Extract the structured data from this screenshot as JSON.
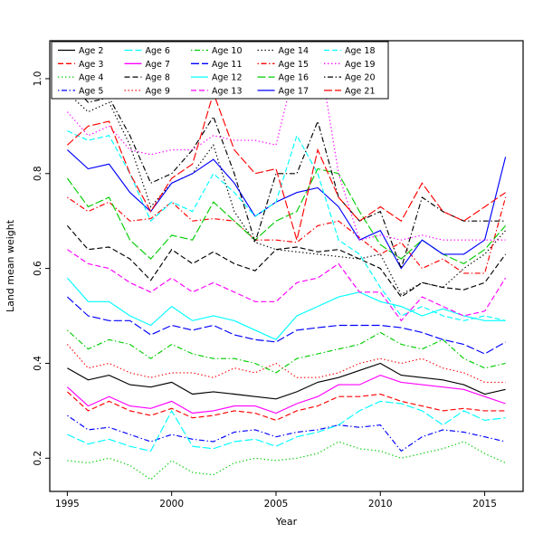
{
  "figure": {
    "background": "#ffffff",
    "axis_color": "#000000"
  },
  "chart_data": {
    "type": "line",
    "title": "",
    "xlabel": "Year",
    "ylabel": "Land mean weight",
    "xlim": [
      1994.16,
      2016.84
    ],
    "ylim": [
      0.13,
      1.08
    ],
    "xticks": [
      1995,
      2000,
      2005,
      2010,
      2015
    ],
    "yticks": [
      "0.2",
      "0.4",
      "0.6",
      "0.8",
      "1.0"
    ],
    "grid": false,
    "legend": {
      "position": "top-left",
      "ncol": 5,
      "rows": 4,
      "border": true
    },
    "x": [
      1995,
      1996,
      1997,
      1998,
      1999,
      2000,
      2001,
      2002,
      2003,
      2004,
      2005,
      2006,
      2007,
      2008,
      2009,
      2010,
      2011,
      2012,
      2013,
      2014,
      2015,
      2016
    ],
    "series": [
      {
        "name": "Age 2",
        "color": "#000000",
        "dash": "solid",
        "values": [
          0.39,
          0.365,
          0.375,
          0.355,
          0.35,
          0.36,
          0.335,
          0.34,
          0.335,
          0.33,
          0.325,
          0.34,
          0.36,
          0.37,
          0.385,
          0.4,
          0.375,
          0.37,
          0.365,
          0.355,
          0.335,
          0.345
        ]
      },
      {
        "name": "Age 3",
        "color": "#ff0000",
        "dash": "dashed",
        "values": [
          0.34,
          0.3,
          0.32,
          0.3,
          0.29,
          0.305,
          0.285,
          0.29,
          0.3,
          0.295,
          0.28,
          0.3,
          0.31,
          0.33,
          0.33,
          0.335,
          0.32,
          0.31,
          0.3,
          0.305,
          0.3,
          0.3
        ]
      },
      {
        "name": "Age 4",
        "color": "#00cd00",
        "dash": "dotted",
        "values": [
          0.195,
          0.19,
          0.2,
          0.185,
          0.155,
          0.195,
          0.17,
          0.165,
          0.19,
          0.2,
          0.195,
          0.2,
          0.21,
          0.235,
          0.22,
          0.215,
          0.2,
          0.21,
          0.22,
          0.235,
          0.21,
          0.19
        ]
      },
      {
        "name": "Age 5",
        "color": "#0000ff",
        "dash": "dotdash",
        "values": [
          0.29,
          0.26,
          0.265,
          0.25,
          0.235,
          0.25,
          0.24,
          0.235,
          0.255,
          0.26,
          0.245,
          0.255,
          0.26,
          0.27,
          0.265,
          0.27,
          0.215,
          0.245,
          0.26,
          0.255,
          0.245,
          0.235
        ]
      },
      {
        "name": "Age 6",
        "color": "#00ffff",
        "dash": "longdash",
        "values": [
          0.25,
          0.23,
          0.24,
          0.225,
          0.215,
          0.3,
          0.225,
          0.22,
          0.235,
          0.24,
          0.225,
          0.245,
          0.255,
          0.27,
          0.3,
          0.32,
          0.315,
          0.3,
          0.27,
          0.3,
          0.28,
          0.285
        ]
      },
      {
        "name": "Age 7",
        "color": "#ff00ff",
        "dash": "solid",
        "values": [
          0.35,
          0.31,
          0.33,
          0.31,
          0.305,
          0.32,
          0.295,
          0.3,
          0.31,
          0.31,
          0.295,
          0.315,
          0.33,
          0.355,
          0.355,
          0.375,
          0.36,
          0.355,
          0.35,
          0.345,
          0.33,
          0.315
        ]
      },
      {
        "name": "Age 8",
        "color": "#000000",
        "dash": "dashed",
        "values": [
          0.69,
          0.64,
          0.645,
          0.62,
          0.575,
          0.64,
          0.61,
          0.635,
          0.61,
          0.595,
          0.64,
          0.645,
          0.635,
          0.64,
          0.62,
          0.6,
          0.54,
          0.57,
          0.56,
          0.555,
          0.57,
          0.63
        ]
      },
      {
        "name": "Age 9",
        "color": "#ff0000",
        "dash": "dotted",
        "values": [
          0.44,
          0.39,
          0.4,
          0.38,
          0.37,
          0.38,
          0.38,
          0.37,
          0.39,
          0.38,
          0.4,
          0.37,
          0.37,
          0.38,
          0.4,
          0.41,
          0.4,
          0.41,
          0.39,
          0.38,
          0.36,
          0.36
        ]
      },
      {
        "name": "Age 10",
        "color": "#00cd00",
        "dash": "dotdash",
        "values": [
          0.47,
          0.43,
          0.45,
          0.44,
          0.41,
          0.44,
          0.42,
          0.41,
          0.41,
          0.4,
          0.38,
          0.41,
          0.42,
          0.43,
          0.44,
          0.465,
          0.44,
          0.43,
          0.45,
          0.41,
          0.39,
          0.4
        ]
      },
      {
        "name": "Age 11",
        "color": "#0000ff",
        "dash": "longdash",
        "values": [
          0.54,
          0.5,
          0.49,
          0.49,
          0.46,
          0.48,
          0.47,
          0.48,
          0.46,
          0.45,
          0.445,
          0.47,
          0.475,
          0.48,
          0.48,
          0.48,
          0.475,
          0.465,
          0.45,
          0.44,
          0.42,
          0.445
        ]
      },
      {
        "name": "Age 12",
        "color": "#00ffff",
        "dash": "solid",
        "values": [
          0.58,
          0.53,
          0.53,
          0.5,
          0.48,
          0.52,
          0.49,
          0.5,
          0.49,
          0.47,
          0.45,
          0.5,
          0.52,
          0.54,
          0.55,
          0.53,
          0.52,
          0.5,
          0.515,
          0.5,
          0.49,
          0.49
        ]
      },
      {
        "name": "Age 13",
        "color": "#ff00ff",
        "dash": "dashed",
        "values": [
          0.64,
          0.61,
          0.6,
          0.57,
          0.55,
          0.58,
          0.55,
          0.57,
          0.55,
          0.53,
          0.53,
          0.57,
          0.58,
          0.61,
          0.55,
          0.55,
          0.49,
          0.54,
          0.52,
          0.5,
          0.51,
          0.58
        ]
      },
      {
        "name": "Age 14",
        "color": "#000000",
        "dash": "dotted",
        "values": [
          0.97,
          0.93,
          0.95,
          0.86,
          0.73,
          0.78,
          0.8,
          0.86,
          0.72,
          0.655,
          0.64,
          0.635,
          0.63,
          0.625,
          0.62,
          0.63,
          0.545,
          0.57,
          0.56,
          0.6,
          0.63,
          0.68
        ]
      },
      {
        "name": "Age 15",
        "color": "#ff0000",
        "dash": "dotdash",
        "values": [
          0.75,
          0.72,
          0.74,
          0.7,
          0.705,
          0.74,
          0.7,
          0.705,
          0.7,
          0.66,
          0.66,
          0.655,
          0.69,
          0.7,
          0.665,
          0.63,
          0.655,
          0.6,
          0.62,
          0.59,
          0.59,
          0.75
        ]
      },
      {
        "name": "Age 16",
        "color": "#00cd00",
        "dash": "longdash",
        "values": [
          0.79,
          0.73,
          0.75,
          0.66,
          0.62,
          0.67,
          0.66,
          0.74,
          0.7,
          0.66,
          0.7,
          0.72,
          0.81,
          0.8,
          0.72,
          0.65,
          0.62,
          0.66,
          0.63,
          0.61,
          0.64,
          0.69
        ]
      },
      {
        "name": "Age 17",
        "color": "#0000ff",
        "dash": "solid",
        "values": [
          0.85,
          0.81,
          0.82,
          0.76,
          0.72,
          0.78,
          0.8,
          0.83,
          0.78,
          0.71,
          0.74,
          0.76,
          0.77,
          0.73,
          0.66,
          0.68,
          0.6,
          0.66,
          0.63,
          0.63,
          0.66,
          0.835
        ]
      },
      {
        "name": "Age 18",
        "color": "#00ffff",
        "dash": "dashed",
        "values": [
          0.89,
          0.87,
          0.88,
          0.8,
          0.7,
          0.74,
          0.72,
          0.8,
          0.76,
          0.71,
          0.74,
          0.88,
          0.8,
          0.66,
          0.63,
          0.56,
          0.5,
          0.52,
          0.5,
          0.49,
          0.5,
          0.49
        ]
      },
      {
        "name": "Age 19",
        "color": "#ff00ff",
        "dash": "dotted",
        "values": [
          0.93,
          0.88,
          0.9,
          0.85,
          0.84,
          0.85,
          0.85,
          0.88,
          0.87,
          0.87,
          0.86,
          1.04,
          1.07,
          0.8,
          0.66,
          0.67,
          0.66,
          0.67,
          0.66,
          0.66,
          0.66,
          0.66
        ]
      },
      {
        "name": "Age 20",
        "color": "#000000",
        "dash": "dotdash",
        "values": [
          1.0,
          0.95,
          0.96,
          0.88,
          0.78,
          0.8,
          0.85,
          0.92,
          0.8,
          0.655,
          0.8,
          0.8,
          0.91,
          0.75,
          0.7,
          0.72,
          0.6,
          0.75,
          0.72,
          0.7,
          0.7,
          0.7
        ]
      },
      {
        "name": "Age 21",
        "color": "#ff0000",
        "dash": "longdash",
        "values": [
          0.86,
          0.9,
          0.91,
          0.8,
          0.72,
          0.79,
          0.82,
          0.97,
          0.85,
          0.8,
          0.81,
          0.66,
          0.85,
          0.75,
          0.7,
          0.73,
          0.7,
          0.78,
          0.72,
          0.7,
          0.73,
          0.76
        ]
      }
    ]
  }
}
